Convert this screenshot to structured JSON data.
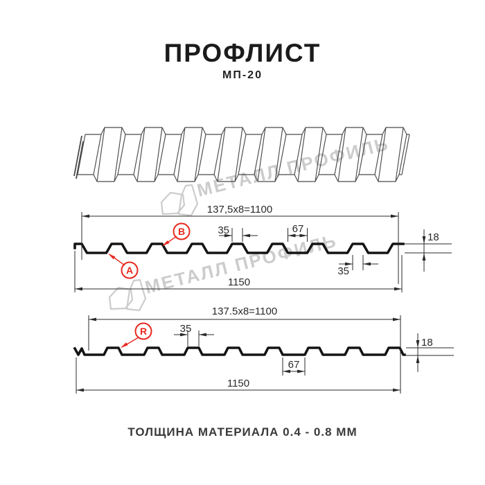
{
  "page": {
    "title": "ПРОФЛИСТ",
    "subtitle": "МП-20",
    "footer": "ТОЛЩИНА МАТЕРИАЛА 0.4 - 0.8 ММ"
  },
  "watermark": {
    "text": "МЕТАЛЛ ПРОФИЛЬ"
  },
  "colors": {
    "accent_red": "#e8281e",
    "profile_line": "#141414",
    "dim_line": "#2a2a2a",
    "watermark_gray": "#cccccc"
  },
  "diagram1": {
    "dims": {
      "width_useful": "137,5x8=1100",
      "rib_top": "35",
      "valley": "67",
      "height": "18",
      "rib_bottom": "35",
      "width_total": "1150"
    },
    "labels": {
      "a": "A",
      "b": "B"
    }
  },
  "diagram2": {
    "dims": {
      "width_useful": "137.5x8=1100",
      "rib_top": "35",
      "valley": "67",
      "height": "18",
      "width_total": "1150"
    },
    "labels": {
      "r": "R"
    }
  }
}
